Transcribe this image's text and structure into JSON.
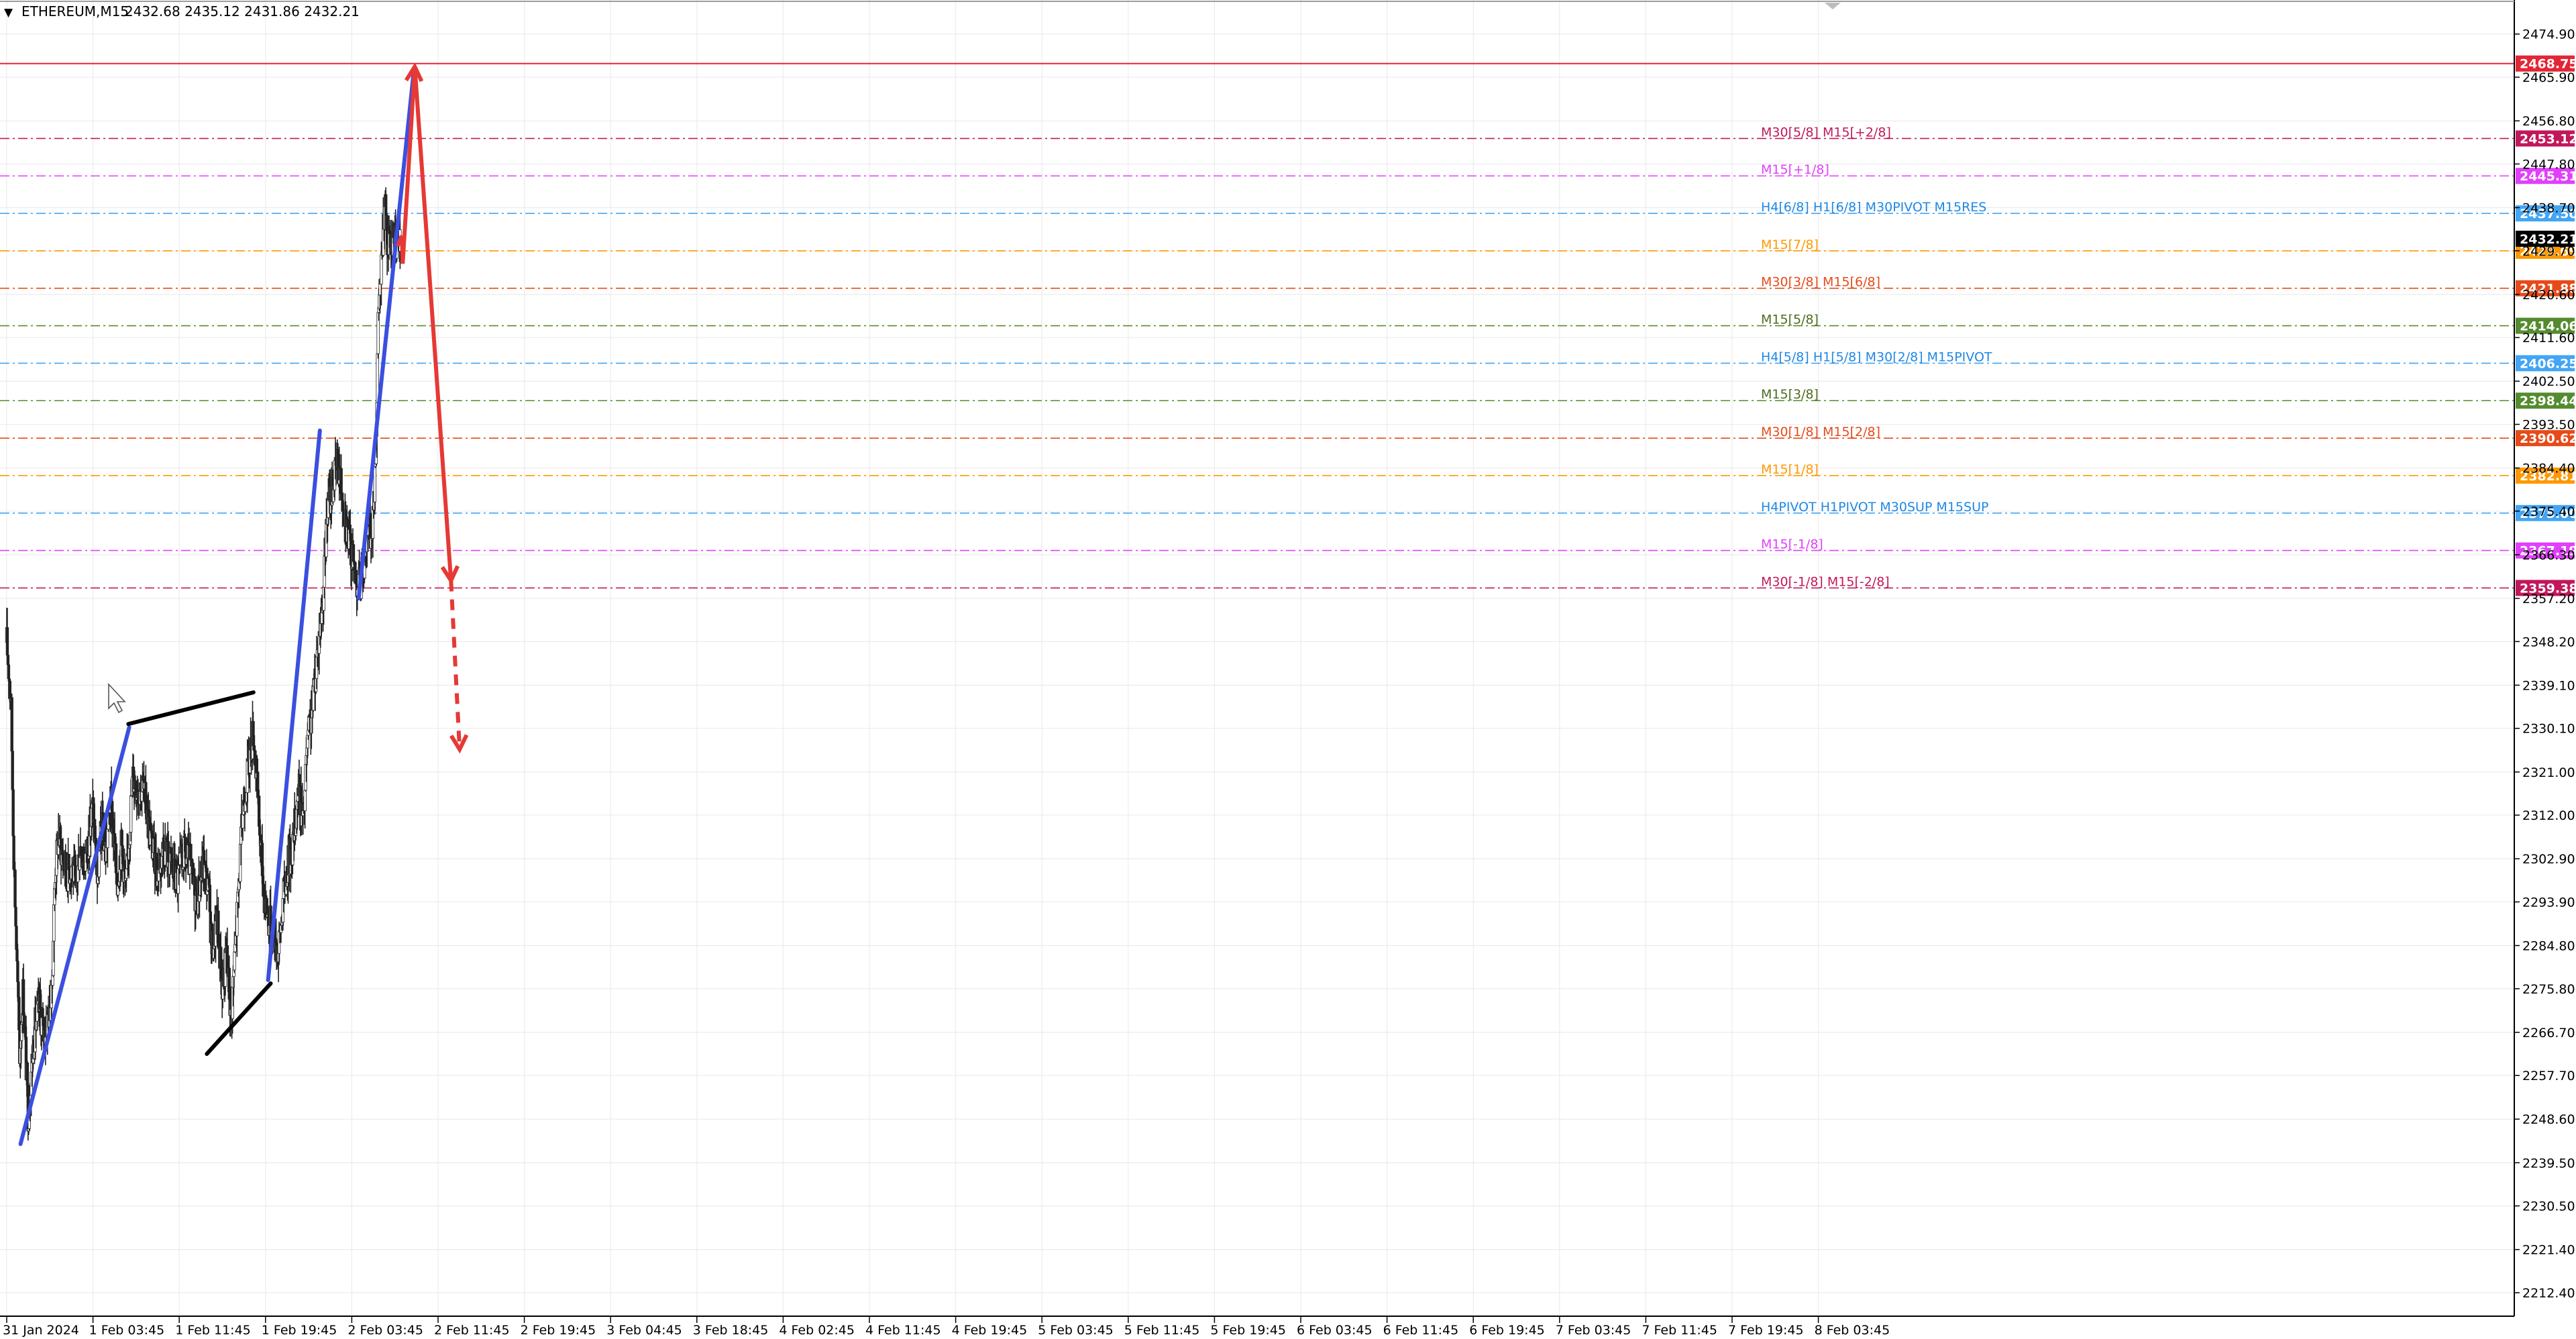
{
  "header": {
    "menu_glyph": "▼",
    "symbol": "ETHEREUM,M15",
    "ohlc": "2432.68 2435.12 2431.86 2432.21"
  },
  "chart_data": {
    "type": "candlestick",
    "symbol": "ETHEREUM",
    "timeframe": "M15",
    "ylim": [
      2207.5,
      2482.0
    ],
    "y_ticks": [
      "2474.90",
      "2465.90",
      "2456.80",
      "2447.80",
      "2438.70",
      "2429.70",
      "2420.60",
      "2411.60",
      "2402.50",
      "2393.50",
      "2384.40",
      "2375.40",
      "2366.30",
      "2357.20",
      "2348.20",
      "2339.10",
      "2330.10",
      "2321.00",
      "2312.00",
      "2302.90",
      "2293.90",
      "2284.80",
      "2275.80",
      "2266.70",
      "2257.70",
      "2248.60",
      "2239.50",
      "2230.50",
      "2221.40",
      "2212.40"
    ],
    "x_ticks": [
      "31 Jan 2024",
      "1 Feb 03:45",
      "1 Feb 11:45",
      "1 Feb 19:45",
      "2 Feb 03:45",
      "2 Feb 11:45",
      "2 Feb 19:45",
      "3 Feb 04:45",
      "3 Feb 18:45",
      "4 Feb 02:45",
      "4 Feb 11:45",
      "4 Feb 19:45",
      "5 Feb 03:45",
      "5 Feb 11:45",
      "5 Feb 19:45",
      "6 Feb 03:45",
      "6 Feb 11:45",
      "6 Feb 19:45",
      "7 Feb 03:45",
      "7 Feb 11:45",
      "7 Feb 19:45",
      "8 Feb 03:45"
    ],
    "current_price": {
      "value": 2432.21,
      "label": "2432.21"
    },
    "price_path": [
      [
        0,
        2348
      ],
      [
        0.05,
        2336
      ],
      [
        0.08,
        2306
      ],
      [
        0.12,
        2280
      ],
      [
        0.15,
        2262
      ],
      [
        0.19,
        2276
      ],
      [
        0.22,
        2262
      ],
      [
        0.25,
        2249
      ],
      [
        0.28,
        2258
      ],
      [
        0.33,
        2268
      ],
      [
        0.38,
        2272
      ],
      [
        0.43,
        2266
      ],
      [
        0.48,
        2270
      ],
      [
        0.52,
        2274
      ],
      [
        0.56,
        2300
      ],
      [
        0.6,
        2308
      ],
      [
        0.64,
        2304
      ],
      [
        0.7,
        2300
      ],
      [
        0.76,
        2302
      ],
      [
        0.8,
        2296
      ],
      [
        0.85,
        2306
      ],
      [
        0.9,
        2302
      ],
      [
        0.95,
        2307
      ],
      [
        1.0,
        2314
      ],
      [
        1.05,
        2298
      ],
      [
        1.1,
        2310
      ],
      [
        1.15,
        2304
      ],
      [
        1.2,
        2316
      ],
      [
        1.28,
        2298
      ],
      [
        1.33,
        2306
      ],
      [
        1.38,
        2296
      ],
      [
        1.42,
        2308
      ],
      [
        1.46,
        2320
      ],
      [
        1.52,
        2318
      ],
      [
        1.58,
        2318
      ],
      [
        1.63,
        2312
      ],
      [
        1.68,
        2306
      ],
      [
        1.75,
        2300
      ],
      [
        1.82,
        2306
      ],
      [
        1.9,
        2302
      ],
      [
        1.98,
        2298
      ],
      [
        2.05,
        2304
      ],
      [
        2.12,
        2302
      ],
      [
        2.2,
        2294
      ],
      [
        2.28,
        2302
      ],
      [
        2.34,
        2296
      ],
      [
        2.38,
        2284
      ],
      [
        2.44,
        2290
      ],
      [
        2.5,
        2276
      ],
      [
        2.55,
        2283
      ],
      [
        2.6,
        2270
      ],
      [
        2.66,
        2288
      ],
      [
        2.74,
        2314
      ],
      [
        2.8,
        2322
      ],
      [
        2.86,
        2330
      ],
      [
        2.92,
        2312
      ],
      [
        2.98,
        2296
      ],
      [
        3.04,
        2290
      ],
      [
        3.1,
        2288
      ],
      [
        3.15,
        2283
      ],
      [
        3.2,
        2294
      ],
      [
        3.26,
        2302
      ],
      [
        3.32,
        2306
      ],
      [
        3.38,
        2318
      ],
      [
        3.44,
        2310
      ],
      [
        3.48,
        2326
      ],
      [
        3.54,
        2334
      ],
      [
        3.6,
        2346
      ],
      [
        3.66,
        2356
      ],
      [
        3.72,
        2376
      ],
      [
        3.78,
        2381
      ],
      [
        3.84,
        2386
      ],
      [
        3.9,
        2378
      ],
      [
        3.96,
        2370
      ],
      [
        4.02,
        2364
      ],
      [
        4.08,
        2360
      ],
      [
        4.12,
        2362
      ],
      [
        4.18,
        2372
      ],
      [
        4.24,
        2370
      ],
      [
        4.28,
        2392
      ],
      [
        4.31,
        2418
      ],
      [
        4.35,
        2428
      ],
      [
        4.38,
        2440
      ],
      [
        4.41,
        2431
      ],
      [
        4.45,
        2429
      ],
      [
        4.5,
        2434
      ],
      [
        4.53,
        2430
      ],
      [
        4.56,
        2432.21
      ]
    ],
    "levels": [
      {
        "price": 2468.75,
        "label": "2468.75",
        "color": "#e32636",
        "style": "solid"
      },
      {
        "price": 2453.12,
        "label": "2453.12",
        "color": "#c2185b",
        "style": "dashdot",
        "tag": "M30[5/8] M15[+2/8]",
        "tag_color": "#c2185b"
      },
      {
        "price": 2445.31,
        "label": "2445.31",
        "color": "#e040fb",
        "style": "dashdot",
        "tag": "M15[+1/8]",
        "tag_color": "#e040fb"
      },
      {
        "price": 2437.5,
        "label": "2437.50",
        "color": "#42a5f5",
        "style": "dashdot",
        "tag": "H4[6/8] H1[6/8] M30PIVOT M15RES",
        "tag_color": "#1e88e5"
      },
      {
        "price": 2429.69,
        "label": "2429.69",
        "color": "#ff9800",
        "style": "dashdot",
        "tag": "M15[7/8]",
        "tag_color": "#ff9800"
      },
      {
        "price": 2421.88,
        "label": "2421.88",
        "color": "#e64a19",
        "style": "dashdot",
        "tag": "M30[3/8] M15[6/8]",
        "tag_color": "#e64a19"
      },
      {
        "price": 2414.06,
        "label": "2414.06",
        "color": "#558b2f",
        "style": "dashdot",
        "tag": "M15[5/8]",
        "tag_color": "#4e6b1e"
      },
      {
        "price": 2406.25,
        "label": "2406.25",
        "color": "#42a5f5",
        "style": "dashdot",
        "tag": "H4[5/8] H1[5/8] M30[2/8] M15PIVOT",
        "tag_color": "#1e88e5"
      },
      {
        "price": 2398.44,
        "label": "2398.44",
        "color": "#558b2f",
        "style": "dashdot",
        "tag": "M15[3/8]",
        "tag_color": "#4e6b1e"
      },
      {
        "price": 2390.62,
        "label": "2390.62",
        "color": "#e64a19",
        "style": "dashdot",
        "tag": "M30[1/8] M15[2/8]",
        "tag_color": "#e64a19"
      },
      {
        "price": 2382.81,
        "label": "2382.81",
        "color": "#ff9800",
        "style": "dashdot",
        "tag": "M15[1/8]",
        "tag_color": "#ff9800"
      },
      {
        "price": 2375.0,
        "label": "2375.00",
        "color": "#42a5f5",
        "style": "dashdot",
        "tag": "H4PIVOT H1PIVOT M30SUP M15SUP",
        "tag_color": "#1e88e5"
      },
      {
        "price": 2367.19,
        "label": "2367.19",
        "color": "#e040fb",
        "style": "dashdot",
        "tag": "M15[-1/8]",
        "tag_color": "#e040fb"
      },
      {
        "price": 2359.38,
        "label": "2359.38",
        "color": "#c2185b",
        "style": "dashdot",
        "tag": "M30[-1/8] M15[-2/8]",
        "tag_color": "#c2185b"
      }
    ],
    "trendlines": [
      {
        "color": "#3b4fe0",
        "points": [
          [
            0.16,
            2243.4
          ],
          [
            1.42,
            2330.3
          ]
        ]
      },
      {
        "color": "#000000",
        "points": [
          [
            1.41,
            2331.0
          ],
          [
            2.86,
            2337.6
          ]
        ]
      },
      {
        "color": "#000000",
        "points": [
          [
            2.32,
            2262.2
          ],
          [
            3.06,
            2276.9
          ]
        ]
      },
      {
        "color": "#3b4fe0",
        "points": [
          [
            3.03,
            2277.6
          ],
          [
            3.63,
            2392.2
          ]
        ]
      },
      {
        "color": "#3b4fe0",
        "points": [
          [
            4.08,
            2357.2
          ],
          [
            4.72,
            2467.4
          ]
        ]
      }
    ],
    "projection": {
      "color": "#e53935",
      "solid": [
        [
          4.53,
          2430.7
        ],
        [
          4.58,
          2432.8
        ],
        [
          4.59,
          2427.0
        ],
        [
          4.73,
          2468.1
        ],
        [
          5.15,
          2360.9
        ]
      ],
      "dashed": [
        [
          5.15,
          2360.9
        ],
        [
          5.25,
          2325.7
        ]
      ]
    }
  }
}
